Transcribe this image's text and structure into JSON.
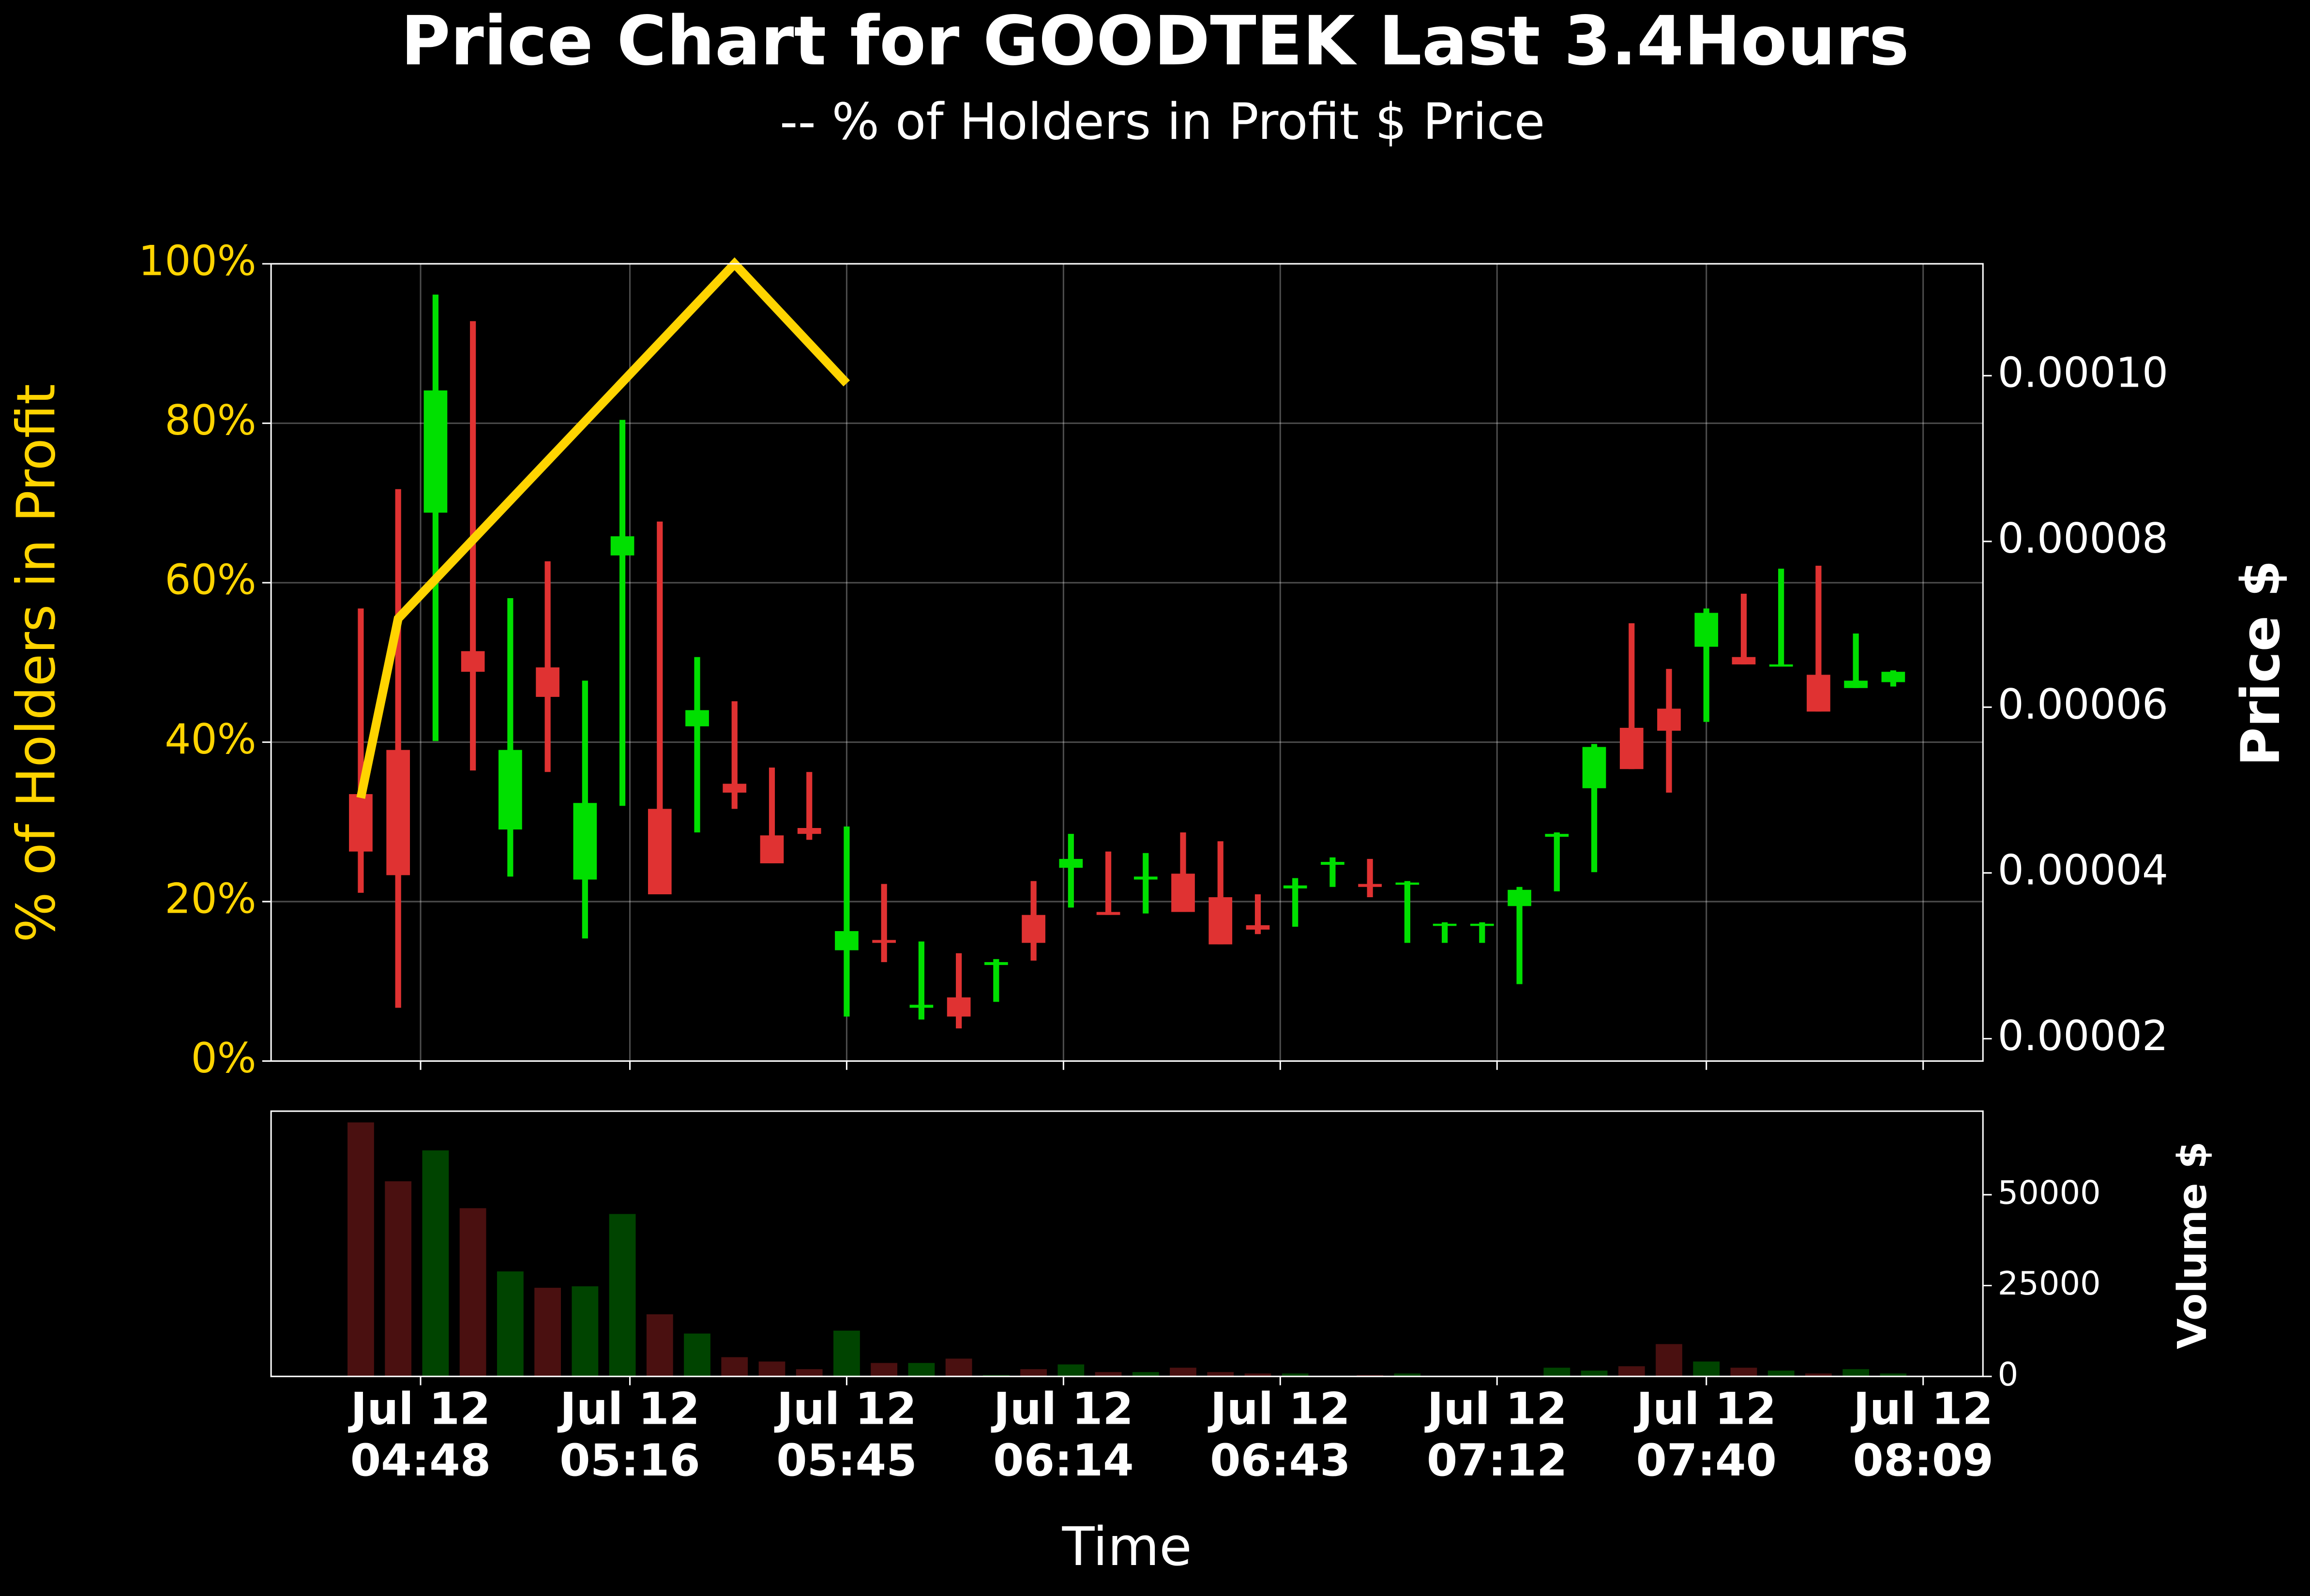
{
  "chart_data": {
    "type": "candlestick",
    "title": "Price Chart for GOODTEK Last 3.4Hours",
    "subtitle": "-- % of Holders in Profit $ Price",
    "x_label": "Time",
    "y_label": "% of Holders in Profit",
    "y2_label": "Price $",
    "volume_label": "Volume $",
    "grid": true,
    "up_color": "#00e000",
    "down_color": "#e03232",
    "volume_up_color": "#004400",
    "volume_down_color": "#4a1010",
    "x": [
      "Jul 12 04:40",
      "Jul 12 04:45",
      "Jul 12 04:50",
      "Jul 12 04:55",
      "Jul 12 05:00",
      "Jul 12 05:05",
      "Jul 12 05:10",
      "Jul 12 05:15",
      "Jul 12 05:20",
      "Jul 12 05:25",
      "Jul 12 05:30",
      "Jul 12 05:35",
      "Jul 12 05:40",
      "Jul 12 05:45",
      "Jul 12 05:50",
      "Jul 12 05:55",
      "Jul 12 06:00",
      "Jul 12 06:05",
      "Jul 12 06:10",
      "Jul 12 06:15",
      "Jul 12 06:20",
      "Jul 12 06:25",
      "Jul 12 06:30",
      "Jul 12 06:35",
      "Jul 12 06:40",
      "Jul 12 06:45",
      "Jul 12 06:50",
      "Jul 12 06:55",
      "Jul 12 07:00",
      "Jul 12 07:05",
      "Jul 12 07:10",
      "Jul 12 07:15",
      "Jul 12 07:20",
      "Jul 12 07:25",
      "Jul 12 07:30",
      "Jul 12 07:35",
      "Jul 12 07:40",
      "Jul 12 07:45",
      "Jul 12 07:50",
      "Jul 12 07:55",
      "Jul 12 08:00",
      "Jul 12 08:05"
    ],
    "open": [
      4.951e-05,
      5.484e-05,
      8.347e-05,
      6.676e-05,
      4.524e-05,
      6.48e-05,
      3.92e-05,
      7.831e-05,
      4.773e-05,
      5.769e-05,
      5.076e-05,
      4.453e-05,
      4.542e-05,
      3.067e-05,
      3.191e-05,
      2.373e-05,
      2.498e-05,
      2.889e-05,
      3.493e-05,
      4.062e-05,
      3.529e-05,
      3.92e-05,
      3.991e-05,
      3.707e-05,
      3.369e-05,
      3.813e-05,
      4.098e-05,
      3.867e-05,
      3.867e-05,
      3.369e-05,
      3.369e-05,
      3.6e-05,
      4.436e-05,
      5.022e-05,
      5.751e-05,
      5.982e-05,
      6.729e-05,
      6.605e-05,
      6.516e-05,
      6.391e-05,
      6.231e-05,
      6.302e-05
    ],
    "high": [
      7.191e-05,
      8.631e-05,
      0.00010978,
      0.00010658,
      7.316e-05,
      7.76e-05,
      6.32e-05,
      9.467e-05,
      8.24e-05,
      6.605e-05,
      6.071e-05,
      5.271e-05,
      5.218e-05,
      4.56e-05,
      3.867e-05,
      3.173e-05,
      3.031e-05,
      2.96e-05,
      3.902e-05,
      4.471e-05,
      4.258e-05,
      4.24e-05,
      4.489e-05,
      4.382e-05,
      3.742e-05,
      3.938e-05,
      4.187e-05,
      4.169e-05,
      3.902e-05,
      3.404e-05,
      3.404e-05,
      3.831e-05,
      4.489e-05,
      5.556e-05,
      7.013e-05,
      6.462e-05,
      7.191e-05,
      7.369e-05,
      7.671e-05,
      7.707e-05,
      6.889e-05,
      6.444e-05
    ],
    "low": [
      3.76e-05,
      2.373e-05,
      5.591e-05,
      5.236e-05,
      3.956e-05,
      5.218e-05,
      3.209e-05,
      4.809e-05,
      3.742e-05,
      4.489e-05,
      4.773e-05,
      4.116e-05,
      4.4e-05,
      2.267e-05,
      2.924e-05,
      2.231e-05,
      2.124e-05,
      2.444e-05,
      2.942e-05,
      3.582e-05,
      3.493e-05,
      3.511e-05,
      3.529e-05,
      3.138e-05,
      3.262e-05,
      3.351e-05,
      3.831e-05,
      3.707e-05,
      3.156e-05,
      3.156e-05,
      3.156e-05,
      2.658e-05,
      3.778e-05,
      4.009e-05,
      5.253e-05,
      4.969e-05,
      5.822e-05,
      6.516e-05,
      6.516e-05,
      5.947e-05,
      6.231e-05,
      6.249e-05
    ],
    "close": [
      4.258e-05,
      3.973e-05,
      9.822e-05,
      6.427e-05,
      5.484e-05,
      6.124e-05,
      4.844e-05,
      8.062e-05,
      3.742e-05,
      5.964e-05,
      4.969e-05,
      4.116e-05,
      4.471e-05,
      3.298e-05,
      3.156e-05,
      2.409e-05,
      2.267e-05,
      2.924e-05,
      3.156e-05,
      4.169e-05,
      3.493e-05,
      3.956e-05,
      3.529e-05,
      3.138e-05,
      3.316e-05,
      3.849e-05,
      4.133e-05,
      3.831e-05,
      3.884e-05,
      3.387e-05,
      3.387e-05,
      3.796e-05,
      4.471e-05,
      5.52e-05,
      5.253e-05,
      5.716e-05,
      7.138e-05,
      6.516e-05,
      6.516e-05,
      5.947e-05,
      6.32e-05,
      6.427e-05
    ],
    "volume": [
      69900,
      53700,
      62200,
      46300,
      28900,
      24400,
      24800,
      44700,
      17100,
      11800,
      5300,
      4100,
      2000,
      12600,
      3700,
      3700,
      4900,
      400,
      2000,
      3300,
      1200,
      1200,
      2400,
      1200,
      800,
      800,
      0,
      400,
      800,
      0,
      0,
      0,
      2400,
      1600,
      2800,
      8900,
      4100,
      2400,
      1600,
      800,
      2000,
      800
    ],
    "line": {
      "x": [
        "Jul 12 04:40",
        "Jul 12 04:45",
        "Jul 12 05:30",
        "Jul 12 05:45"
      ],
      "values": [
        33,
        55.5,
        100,
        85
      ],
      "color": "#ffd400"
    },
    "xlim": [
      "Jul 12 04:28",
      "Jul 12 08:17"
    ],
    "xticks": [
      "Jul 12 04:48",
      "Jul 12 05:16",
      "Jul 12 05:45",
      "Jul 12 06:14",
      "Jul 12 06:43",
      "Jul 12 07:12",
      "Jul 12 07:40",
      "Jul 12 08:09"
    ],
    "ylim": [
      0,
      100
    ],
    "yticks": [
      {
        "value": 0,
        "label": "0%"
      },
      {
        "value": 20,
        "label": "20%"
      },
      {
        "value": 40,
        "label": "40%"
      },
      {
        "value": 60,
        "label": "60%"
      },
      {
        "value": 80,
        "label": "80%"
      },
      {
        "value": 100,
        "label": "100%"
      }
    ],
    "y2lim": [
      1.73e-05,
      0.0001135
    ],
    "y2ticks": [
      2e-05,
      4e-05,
      6e-05,
      8e-05,
      {
        "value": 0.0001,
        "label": "0.00010"
      }
    ],
    "volume_ylim": [
      0,
      73000
    ],
    "volume_yticks": [
      0,
      25000,
      50000
    ]
  }
}
